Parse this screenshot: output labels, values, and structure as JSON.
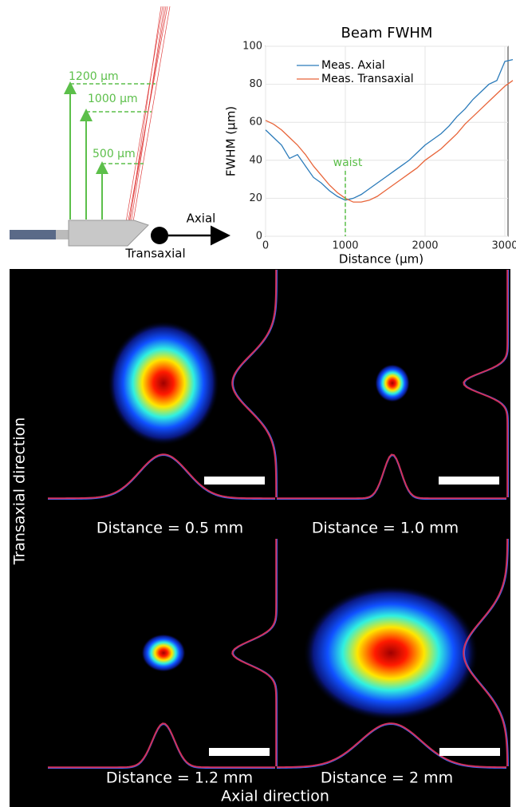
{
  "chart_data": {
    "type": "line",
    "title": "Beam FWHM",
    "x_label": "Distance (µm)",
    "y_label": "FWHM (µm)",
    "x": [
      0,
      100,
      200,
      300,
      400,
      500,
      600,
      700,
      800,
      900,
      1000,
      1100,
      1200,
      1300,
      1400,
      1500,
      1600,
      1700,
      1800,
      1900,
      2000,
      2100,
      2200,
      2300,
      2400,
      2500,
      2600,
      2700,
      2800,
      2900,
      3000,
      3100
    ],
    "series": [
      {
        "name": "Meas. Axial",
        "color": "#2b7bba",
        "values": [
          56,
          52,
          48,
          41,
          43,
          37,
          31,
          28,
          24,
          21,
          19,
          20,
          22,
          25,
          28,
          31,
          34,
          37,
          40,
          44,
          48,
          51,
          54,
          58,
          63,
          67,
          72,
          76,
          80,
          82,
          92,
          93
        ]
      },
      {
        "name": "Meas. Transaxial",
        "color": "#e8653a",
        "values": [
          61,
          59,
          56,
          52,
          48,
          43,
          37,
          32,
          27,
          23,
          20,
          18,
          18,
          19,
          21,
          24,
          27,
          30,
          33,
          36,
          40,
          43,
          46,
          50,
          54,
          59,
          63,
          67,
          71,
          75,
          79,
          82
        ]
      }
    ],
    "xlim": [
      0,
      3040
    ],
    "ylim": [
      0,
      100
    ],
    "xticks": [
      0,
      1000,
      2000,
      3000
    ],
    "yticks": [
      0,
      20,
      40,
      60,
      80,
      100
    ],
    "grid": true,
    "annotations": [
      {
        "text": "waist",
        "x": 1000
      }
    ]
  },
  "diagram": {
    "levels": [
      "1200 µm",
      "1000 µm",
      "500 µm"
    ],
    "axial": "Axial",
    "transaxial": "Transaxial"
  },
  "panels": {
    "captions": [
      "Distance = 0.5 mm",
      "Distance = 1.0 mm",
      "Distance = 1.2 mm",
      "Distance = 2 mm"
    ],
    "x_label": "Axial direction",
    "y_label": "Transaxial direction"
  }
}
